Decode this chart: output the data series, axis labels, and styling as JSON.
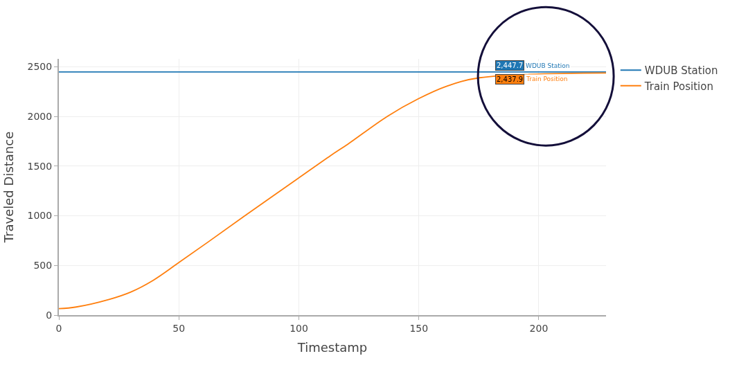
{
  "chart_data": {
    "type": "line",
    "xlabel": "Timestamp",
    "ylabel": "Traveled Distance",
    "xlim": [
      0,
      228
    ],
    "xticks": [
      0,
      50,
      100,
      150,
      200
    ],
    "ylim": [
      0,
      2580
    ],
    "yticks": [
      0,
      500,
      1000,
      1500,
      2000,
      2500
    ],
    "grid": true,
    "legend": "top right",
    "marker": "none",
    "line_style": "solid",
    "series": [
      {
        "name": "WDUB Station",
        "color": "#1f77b4",
        "x": [
          0,
          228
        ],
        "values": [
          2447.7,
          2447.7
        ]
      },
      {
        "name": "Train Position",
        "color": "#ff7f0e",
        "x": [
          0,
          7.2,
          20.9,
          30,
          39.2,
          49.7,
          62,
          77.5,
          99.5,
          113.2,
          120.5,
          136.9,
          149.7,
          161.5,
          175.3,
          228
        ],
        "values": [
          65,
          82,
          158,
          233,
          349,
          524,
          733,
          1001,
          1374,
          1606,
          1723,
          2002,
          2177,
          2304,
          2390,
          2437.9
        ]
      }
    ],
    "annotations": [
      "2,447.7",
      "WDUB Station",
      "2,437.9",
      "Train Position"
    ]
  }
}
